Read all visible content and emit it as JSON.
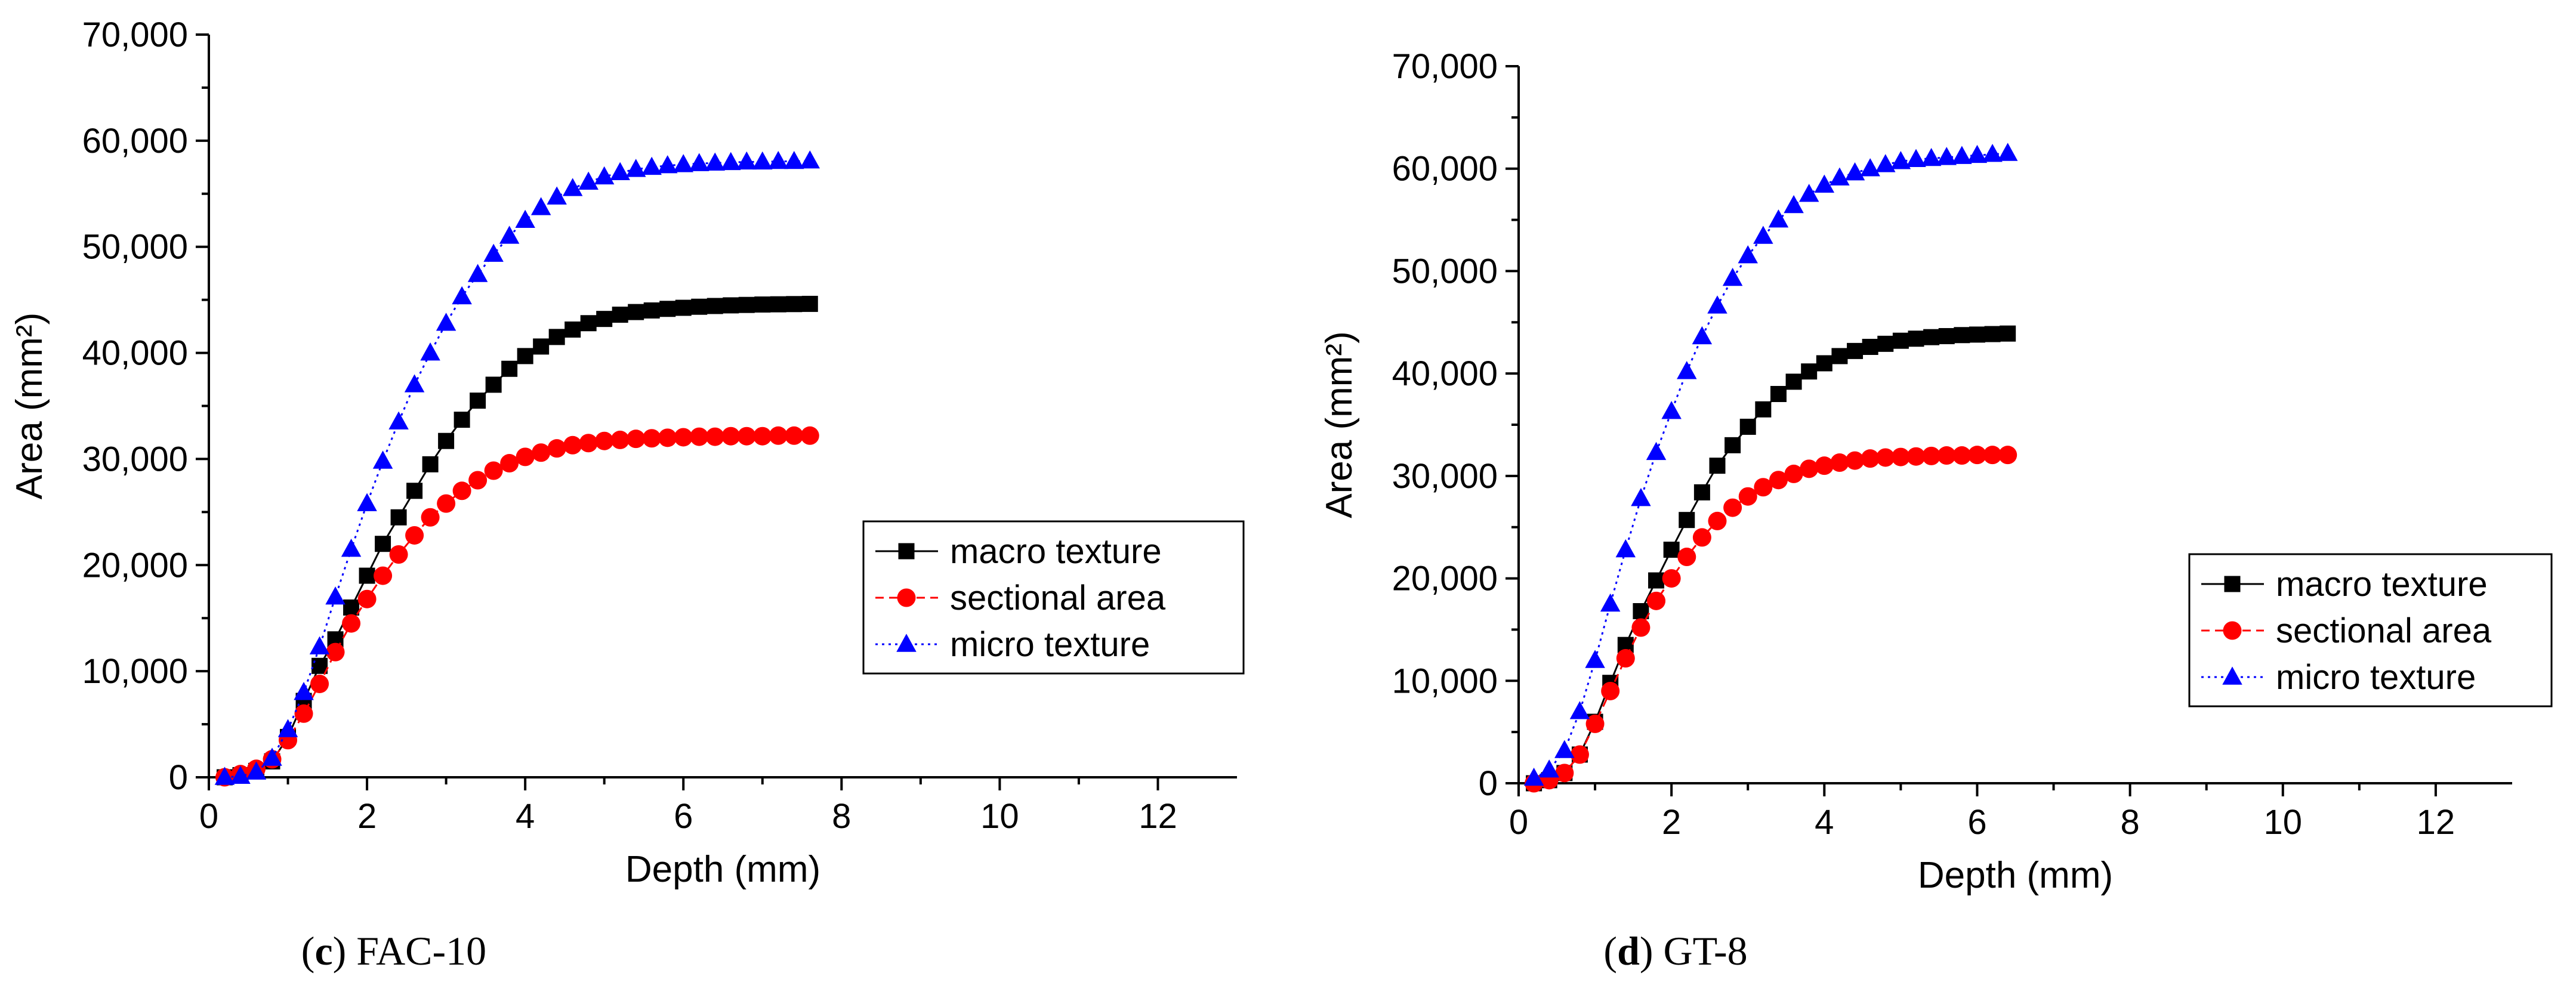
{
  "chart_data": [
    {
      "type": "line",
      "caption_letter": "c",
      "caption_text": "FAC-10",
      "xlabel": "Depth (mm)",
      "ylabel": "Area (mm²)",
      "xlim": [
        0,
        13
      ],
      "ylim": [
        0,
        70000
      ],
      "xticks": [
        0,
        2,
        4,
        6,
        8,
        10,
        12
      ],
      "yticks": [
        0,
        10000,
        20000,
        30000,
        40000,
        50000,
        60000,
        70000
      ],
      "xtick_labels": [
        "0",
        "2",
        "4",
        "6",
        "8",
        "10",
        "12"
      ],
      "ytick_labels": [
        "0",
        "10,000",
        "20,000",
        "30,000",
        "40,000",
        "50,000",
        "60,000",
        "70,000"
      ],
      "legend_position": "lower-right",
      "series": [
        {
          "name": "macro texture",
          "color": "#000000",
          "marker": "square",
          "line": "solid",
          "x": [
            0.2,
            0.4,
            0.6,
            0.8,
            1.0,
            1.2,
            1.4,
            1.6,
            1.8,
            2.0,
            2.2,
            2.4,
            2.6,
            2.8,
            3.0,
            3.2,
            3.4,
            3.6,
            3.8,
            4.0,
            4.2,
            4.4,
            4.6,
            4.8,
            5.0,
            5.2,
            5.4,
            5.6,
            5.8,
            6.0,
            6.2,
            6.4,
            6.6,
            6.8,
            7.0,
            7.2,
            7.4,
            7.6
          ],
          "y": [
            0,
            200,
            600,
            1500,
            3800,
            7200,
            10500,
            13000,
            16000,
            19000,
            22000,
            24500,
            27000,
            29500,
            31700,
            33700,
            35500,
            37000,
            38500,
            39700,
            40600,
            41500,
            42200,
            42800,
            43200,
            43600,
            43850,
            44000,
            44150,
            44250,
            44350,
            44420,
            44480,
            44520,
            44560,
            44580,
            44600,
            44620
          ]
        },
        {
          "name": "sectional area",
          "color": "#ff0000",
          "marker": "circle",
          "line": "dashed",
          "x": [
            0.2,
            0.4,
            0.6,
            0.8,
            1.0,
            1.2,
            1.4,
            1.6,
            1.8,
            2.0,
            2.2,
            2.4,
            2.6,
            2.8,
            3.0,
            3.2,
            3.4,
            3.6,
            3.8,
            4.0,
            4.2,
            4.4,
            4.6,
            4.8,
            5.0,
            5.2,
            5.4,
            5.6,
            5.8,
            6.0,
            6.2,
            6.4,
            6.6,
            6.8,
            7.0,
            7.2,
            7.4,
            7.6
          ],
          "y": [
            0,
            300,
            800,
            1700,
            3500,
            6000,
            8800,
            11800,
            14500,
            16800,
            19000,
            21000,
            22800,
            24500,
            25800,
            27000,
            28000,
            28900,
            29600,
            30200,
            30600,
            31000,
            31300,
            31500,
            31700,
            31800,
            31900,
            31950,
            32000,
            32050,
            32100,
            32100,
            32150,
            32150,
            32150,
            32200,
            32200,
            32200
          ]
        },
        {
          "name": "micro texture",
          "color": "#0000ff",
          "marker": "triangle",
          "line": "dotted",
          "x": [
            0.2,
            0.4,
            0.6,
            0.8,
            1.0,
            1.2,
            1.4,
            1.6,
            1.8,
            2.0,
            2.2,
            2.4,
            2.6,
            2.8,
            3.0,
            3.2,
            3.4,
            3.6,
            3.8,
            4.0,
            4.2,
            4.4,
            4.6,
            4.8,
            5.0,
            5.2,
            5.4,
            5.6,
            5.8,
            6.0,
            6.2,
            6.4,
            6.6,
            6.8,
            7.0,
            7.2,
            7.4,
            7.6
          ],
          "y": [
            0,
            100,
            500,
            1800,
            4500,
            8000,
            12300,
            17000,
            21500,
            25800,
            29800,
            33500,
            37000,
            40000,
            42800,
            45300,
            47400,
            49300,
            51000,
            52500,
            53700,
            54700,
            55500,
            56100,
            56600,
            57000,
            57300,
            57500,
            57650,
            57750,
            57850,
            57900,
            57950,
            58000,
            58000,
            58050,
            58050,
            58100
          ]
        }
      ]
    },
    {
      "type": "line",
      "caption_letter": "d",
      "caption_text": "GT-8",
      "xlabel": "Depth (mm)",
      "ylabel": "Area (mm²)",
      "xlim": [
        0,
        13
      ],
      "ylim": [
        0,
        70000
      ],
      "xticks": [
        0,
        2,
        4,
        6,
        8,
        10,
        12
      ],
      "yticks": [
        0,
        10000,
        20000,
        30000,
        40000,
        50000,
        60000,
        70000
      ],
      "xtick_labels": [
        "0",
        "2",
        "4",
        "6",
        "8",
        "10",
        "12"
      ],
      "ytick_labels": [
        "0",
        "10,000",
        "20,000",
        "30,000",
        "40,000",
        "50,000",
        "60,000",
        "70,000"
      ],
      "legend_position": "lower-right",
      "series": [
        {
          "name": "macro texture",
          "color": "#000000",
          "marker": "square",
          "line": "solid",
          "x": [
            0.2,
            0.4,
            0.6,
            0.8,
            1.0,
            1.2,
            1.4,
            1.6,
            1.8,
            2.0,
            2.2,
            2.4,
            2.6,
            2.8,
            3.0,
            3.2,
            3.4,
            3.6,
            3.8,
            4.0,
            4.2,
            4.4,
            4.6,
            4.8,
            5.0,
            5.2,
            5.4,
            5.6,
            5.8,
            6.0,
            6.2,
            6.4
          ],
          "y": [
            0,
            300,
            1000,
            2800,
            6000,
            9800,
            13500,
            16800,
            19800,
            22800,
            25700,
            28400,
            31000,
            33000,
            34800,
            36500,
            38000,
            39200,
            40200,
            41000,
            41700,
            42200,
            42600,
            42900,
            43200,
            43400,
            43550,
            43650,
            43750,
            43800,
            43850,
            43900
          ]
        },
        {
          "name": "sectional area",
          "color": "#ff0000",
          "marker": "circle",
          "line": "dashed",
          "x": [
            0.2,
            0.4,
            0.6,
            0.8,
            1.0,
            1.2,
            1.4,
            1.6,
            1.8,
            2.0,
            2.2,
            2.4,
            2.6,
            2.8,
            3.0,
            3.2,
            3.4,
            3.6,
            3.8,
            4.0,
            4.2,
            4.4,
            4.6,
            4.8,
            5.0,
            5.2,
            5.4,
            5.6,
            5.8,
            6.0,
            6.2,
            6.4
          ],
          "y": [
            0,
            300,
            1000,
            2800,
            5800,
            9000,
            12200,
            15200,
            17800,
            20000,
            22100,
            24000,
            25600,
            26900,
            28000,
            28900,
            29600,
            30200,
            30700,
            31000,
            31300,
            31500,
            31700,
            31800,
            31850,
            31900,
            31950,
            32000,
            32000,
            32050,
            32050,
            32050
          ]
        },
        {
          "name": "micro texture",
          "color": "#0000ff",
          "marker": "triangle",
          "line": "dotted",
          "x": [
            0.2,
            0.4,
            0.6,
            0.8,
            1.0,
            1.2,
            1.4,
            1.6,
            1.8,
            2.0,
            2.2,
            2.4,
            2.6,
            2.8,
            3.0,
            3.2,
            3.4,
            3.6,
            3.8,
            4.0,
            4.2,
            4.4,
            4.6,
            4.8,
            5.0,
            5.2,
            5.4,
            5.6,
            5.8,
            6.0,
            6.2,
            6.4
          ],
          "y": [
            500,
            1300,
            3200,
            7000,
            12000,
            17500,
            22800,
            27800,
            32300,
            36300,
            40200,
            43600,
            46600,
            49300,
            51500,
            53400,
            55000,
            56400,
            57500,
            58400,
            59100,
            59600,
            60000,
            60400,
            60700,
            60900,
            61000,
            61100,
            61200,
            61300,
            61400,
            61500
          ]
        }
      ]
    }
  ]
}
